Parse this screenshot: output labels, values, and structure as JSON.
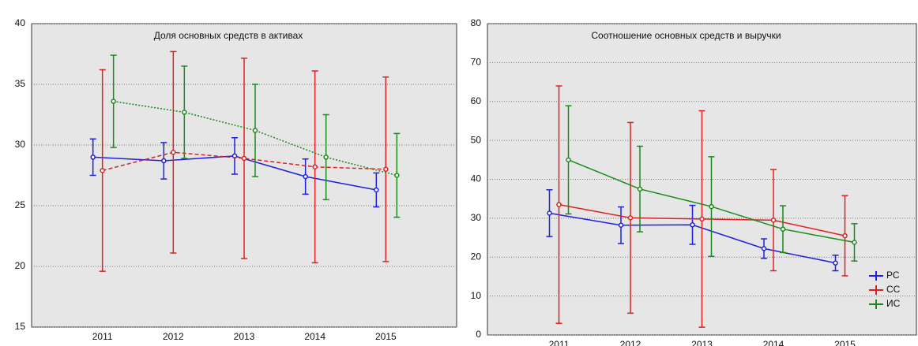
{
  "chart_data": [
    {
      "type": "line",
      "title": "Доля основных средств в активах",
      "categories": [
        "2011",
        "2012",
        "2013",
        "2014",
        "2015"
      ],
      "ylim": [
        15,
        40
      ],
      "yticks": [
        15,
        20,
        25,
        30,
        35,
        40
      ],
      "grid": true,
      "series": [
        {
          "color": "#1f1fe0",
          "line_style": "solid",
          "values": [
            29.0,
            28.7,
            29.1,
            27.4,
            26.3
          ],
          "errors": [
            1.5,
            1.5,
            1.5,
            1.45,
            1.4
          ]
        },
        {
          "color": "#e02020",
          "line_style": "dashed",
          "values": [
            27.9,
            29.4,
            28.9,
            28.2,
            28.0
          ],
          "errors": [
            8.3,
            8.3,
            8.25,
            7.9,
            7.6
          ]
        },
        {
          "color": "#1a8a1a",
          "line_style": "dotted",
          "values": [
            33.6,
            32.7,
            31.2,
            29.0,
            27.5
          ],
          "errors": [
            3.8,
            3.8,
            3.8,
            3.5,
            3.45
          ]
        }
      ]
    },
    {
      "type": "line",
      "title": "Соотношение основных средств и выручки",
      "categories": [
        "2011",
        "2012",
        "2013",
        "2014",
        "2015"
      ],
      "ylim": [
        0,
        80
      ],
      "yticks": [
        0,
        10,
        20,
        30,
        40,
        50,
        60,
        70,
        80
      ],
      "grid": true,
      "legend": "lower right",
      "series": [
        {
          "name": "РС",
          "color": "#1f1fe0",
          "line_style": "solid",
          "values": [
            31.3,
            28.2,
            28.3,
            22.2,
            18.5
          ],
          "errors": [
            6.0,
            4.7,
            5.0,
            2.5,
            2.0
          ]
        },
        {
          "name": "СС",
          "color": "#e02020",
          "line_style": "solid",
          "values": [
            33.5,
            30.1,
            29.8,
            29.5,
            25.5
          ],
          "errors": [
            30.5,
            24.5,
            27.8,
            13.0,
            10.3
          ]
        },
        {
          "name": "ИС",
          "color": "#1a8a1a",
          "line_style": "solid",
          "values": [
            45.0,
            37.5,
            33.0,
            27.2,
            23.8
          ],
          "errors": [
            13.9,
            11.0,
            12.8,
            6.0,
            4.8
          ]
        }
      ]
    }
  ]
}
